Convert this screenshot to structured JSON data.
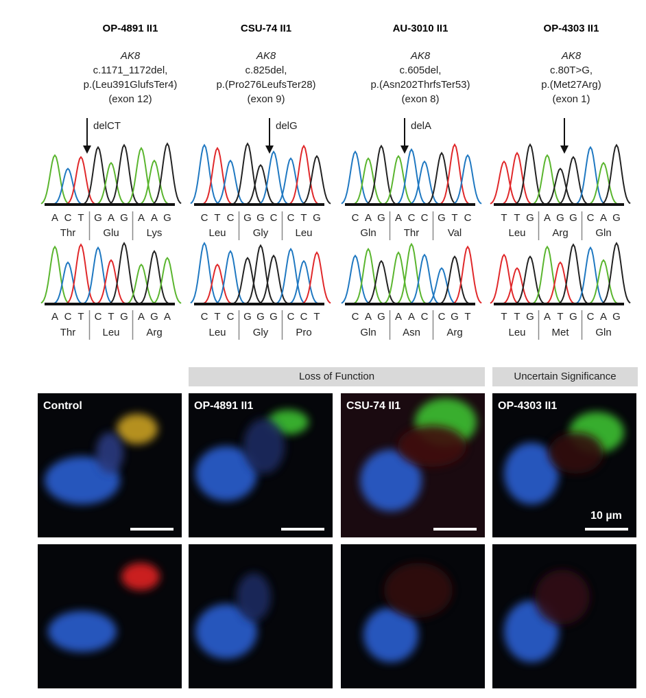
{
  "columns": [
    {
      "title": "OP-4891 II1",
      "gene": "AK8",
      "cdna": "c.1171_1172del,",
      "protein": "p.(Leu391GlufsTer4)",
      "exon": "(exon 12)",
      "arrow_label": "delCT",
      "mutant": {
        "bases": [
          "A",
          "C",
          "T",
          "G",
          "A",
          "G",
          "A",
          "A",
          "G"
        ],
        "amino_acids": [
          {
            "text": "Thr",
            "color": "#222222"
          },
          {
            "text": "Glu",
            "color": "#d6283a"
          },
          {
            "text": "Lys",
            "color": "#d6283a"
          }
        ]
      },
      "reference": {
        "bases": [
          "A",
          "C",
          "T",
          "C",
          "T",
          "G",
          "A",
          "G",
          "A"
        ],
        "amino_acids": [
          {
            "text": "Thr",
            "color": "#222222"
          },
          {
            "text": "Leu",
            "color": "#222222"
          },
          {
            "text": "Arg",
            "color": "#222222"
          }
        ]
      }
    },
    {
      "title": "CSU-74 II1",
      "gene": "AK8",
      "cdna": "c.825del,",
      "protein": "p.(Pro276LeufsTer28)",
      "exon": "(exon 9)",
      "arrow_label": "delG",
      "mutant": {
        "bases": [
          "C",
          "T",
          "C",
          "G",
          "G",
          "C",
          "C",
          "T",
          "G"
        ],
        "amino_acids": [
          {
            "text": "Leu",
            "color": "#222222"
          },
          {
            "text": "Gly",
            "color": "#222222"
          },
          {
            "text": "Leu",
            "color": "#d6283a"
          }
        ]
      },
      "reference": {
        "bases": [
          "C",
          "T",
          "C",
          "G",
          "G",
          "G",
          "C",
          "C",
          "T"
        ],
        "amino_acids": [
          {
            "text": "Leu",
            "color": "#222222"
          },
          {
            "text": "Gly",
            "color": "#222222"
          },
          {
            "text": "Pro",
            "color": "#222222"
          }
        ]
      }
    },
    {
      "title": "AU-3010 II1",
      "gene": "AK8",
      "cdna": "c.605del,",
      "protein": "p.(Asn202ThrfsTer53)",
      "exon": "(exon 8)",
      "arrow_label": "delA",
      "mutant": {
        "bases": [
          "C",
          "A",
          "G",
          "A",
          "C",
          "C",
          "G",
          "T",
          "C"
        ],
        "amino_acids": [
          {
            "text": "Gln",
            "color": "#222222"
          },
          {
            "text": "Thr",
            "color": "#d6283a"
          },
          {
            "text": "Val",
            "color": "#d6283a"
          }
        ]
      },
      "reference": {
        "bases": [
          "C",
          "A",
          "G",
          "A",
          "A",
          "C",
          "C",
          "G",
          "T"
        ],
        "amino_acids": [
          {
            "text": "Gln",
            "color": "#222222"
          },
          {
            "text": "Asn",
            "color": "#222222"
          },
          {
            "text": "Arg",
            "color": "#222222"
          }
        ]
      }
    },
    {
      "title": "OP-4303 II1",
      "gene": "AK8",
      "cdna": "c.80T>G,",
      "protein": "p.(Met27Arg)",
      "exon": "(exon 1)",
      "mutant": {
        "bases": [
          "T",
          "T",
          "G",
          "A",
          "G",
          "G",
          "C",
          "A",
          "G"
        ],
        "amino_acids": [
          {
            "text": "Leu",
            "color": "#222222"
          },
          {
            "text": "Arg",
            "color": "#d6283a"
          },
          {
            "text": "Gln",
            "color": "#222222"
          }
        ]
      },
      "reference": {
        "bases": [
          "T",
          "T",
          "G",
          "A",
          "T",
          "G",
          "C",
          "A",
          "G"
        ],
        "amino_acids": [
          {
            "text": "Leu",
            "color": "#222222"
          },
          {
            "text": "Met",
            "color": "#222222"
          },
          {
            "text": "Gln",
            "color": "#222222"
          }
        ]
      }
    }
  ],
  "base_colors": {
    "A": "#5ab52e",
    "C": "#1f78c1",
    "G": "#222222",
    "T": "#e0282a"
  },
  "groups": [
    {
      "label": "Loss of Function"
    },
    {
      "label": "Uncertain Significance"
    }
  ],
  "panels": [
    {
      "label": "Control"
    },
    {
      "label": "OP-4891 II1"
    },
    {
      "label": "CSU-74 II1"
    },
    {
      "label": "OP-4303 II1"
    }
  ],
  "scale_bar": "10 µm"
}
